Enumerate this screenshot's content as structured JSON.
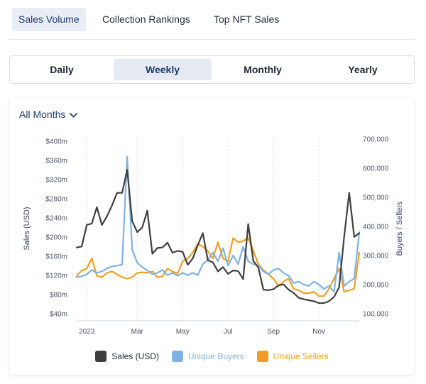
{
  "tabs": [
    {
      "label": "Sales Volume",
      "active": true
    },
    {
      "label": "Collection Rankings",
      "active": false
    },
    {
      "label": "Top NFT Sales",
      "active": false
    }
  ],
  "periods": [
    {
      "label": "Daily",
      "active": false
    },
    {
      "label": "Weekly",
      "active": true
    },
    {
      "label": "Monthly",
      "active": false
    },
    {
      "label": "Yearly",
      "active": false
    }
  ],
  "filter": {
    "label": "All Months"
  },
  "colors": {
    "sales": "#3f3f3f",
    "buyers": "#7fb2e5",
    "sellers": "#f0a020"
  },
  "chart_data": {
    "type": "line",
    "ylabel": "Sales (USD)",
    "y2label": "Buyers / Sellers",
    "ylim": [
      25,
      410
    ],
    "y2lim": [
      75000,
      710000
    ],
    "y_ticks": [
      "$40m",
      "$80m",
      "$120m",
      "$160m",
      "$200m",
      "$240m",
      "$280m",
      "$320m",
      "$360m",
      "$400m"
    ],
    "y_tick_values": [
      40,
      80,
      120,
      160,
      200,
      240,
      280,
      320,
      360,
      400
    ],
    "y2_ticks": [
      "100,000",
      "200,000",
      "300,000",
      "400,000",
      "500,000",
      "600,000",
      "700,000"
    ],
    "y2_tick_values": [
      100000,
      200000,
      300000,
      400000,
      500000,
      600000,
      700000
    ],
    "x_ticks": [
      "2023",
      "Mar",
      "May",
      "Jul",
      "Sep",
      "Nov"
    ],
    "x_tick_positions": [
      2,
      12,
      21,
      30,
      39,
      48
    ],
    "grid": true,
    "legend": "bottom",
    "series": [
      {
        "name": "Sales (USD)",
        "axis": "left",
        "values": [
          178,
          180,
          225,
          228,
          262,
          225,
          243,
          266,
          292,
          292,
          340,
          233,
          210,
          220,
          255,
          165,
          177,
          178,
          188,
          167,
          171,
          169,
          142,
          155,
          183,
          208,
          151,
          147,
          128,
          137,
          123,
          130,
          129,
          112,
          227,
          150,
          136,
          90,
          89,
          91,
          99,
          101,
          90,
          83,
          73,
          70,
          68,
          66,
          62,
          62,
          66,
          75,
          95,
          200,
          292,
          200,
          208
        ]
      },
      {
        "name": "Unique Buyers",
        "axis": "right",
        "values": [
          225000,
          228000,
          235000,
          250000,
          240000,
          245000,
          255000,
          262000,
          265000,
          268000,
          640000,
          320000,
          275000,
          260000,
          248000,
          235000,
          240000,
          250000,
          232000,
          240000,
          230000,
          240000,
          232000,
          240000,
          232000,
          270000,
          285000,
          310000,
          280000,
          325000,
          265000,
          300000,
          270000,
          330000,
          280000,
          270000,
          265000,
          245000,
          235000,
          250000,
          255000,
          240000,
          230000,
          205000,
          210000,
          200000,
          195000,
          210000,
          200000,
          185000,
          195000,
          175000,
          310000,
          195000,
          210000,
          220000,
          380000
        ]
      },
      {
        "name": "Unique Sellers",
        "axis": "right",
        "values": [
          230000,
          248000,
          255000,
          290000,
          230000,
          225000,
          240000,
          245000,
          235000,
          225000,
          220000,
          225000,
          240000,
          242000,
          240000,
          245000,
          225000,
          228000,
          255000,
          245000,
          238000,
          280000,
          290000,
          310000,
          340000,
          330000,
          315000,
          290000,
          345000,
          290000,
          280000,
          360000,
          345000,
          350000,
          360000,
          315000,
          270000,
          250000,
          235000,
          220000,
          195000,
          210000,
          220000,
          185000,
          180000,
          170000,
          170000,
          175000,
          160000,
          160000,
          185000,
          220000,
          255000,
          175000,
          180000,
          185000,
          310000
        ]
      }
    ]
  }
}
